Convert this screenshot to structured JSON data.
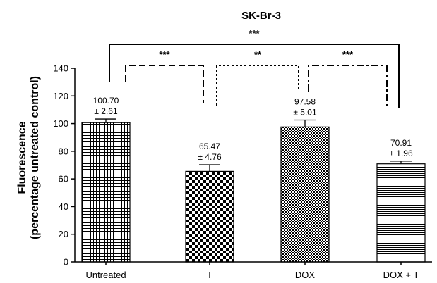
{
  "chart_data": {
    "type": "bar",
    "title": "SK-Br-3",
    "xlabel": "",
    "ylabel": "Fluorescence",
    "ylabel_line2": "(percentage untreated control)",
    "ylim": [
      0,
      140
    ],
    "yticks": [
      "0",
      "20",
      "40",
      "60",
      "80",
      "100",
      "120",
      "140"
    ],
    "grid": false,
    "categories": [
      "Untreated",
      "T",
      "DOX",
      "DOX + T"
    ],
    "values": [
      100.7,
      65.47,
      97.58,
      70.91
    ],
    "errors": [
      2.61,
      4.76,
      5.01,
      1.96
    ],
    "patterns": [
      "grid",
      "checker-large",
      "checker-small",
      "horizontal-lines"
    ],
    "value_labels": [
      "100.70",
      "65.47",
      "97.58",
      "70.91"
    ],
    "error_labels": [
      "± 2.61",
      "± 4.76",
      "± 5.01",
      "± 1.96"
    ],
    "significance": [
      {
        "from": "Untreated",
        "to": "DOX + T",
        "label": "***",
        "style": "solid"
      },
      {
        "from": "Untreated",
        "to": "T",
        "label": "***",
        "style": "dashed"
      },
      {
        "from": "T",
        "to": "DOX",
        "label": "**",
        "style": "dotted"
      },
      {
        "from": "DOX",
        "to": "DOX + T",
        "label": "***",
        "style": "dashdot"
      }
    ]
  }
}
